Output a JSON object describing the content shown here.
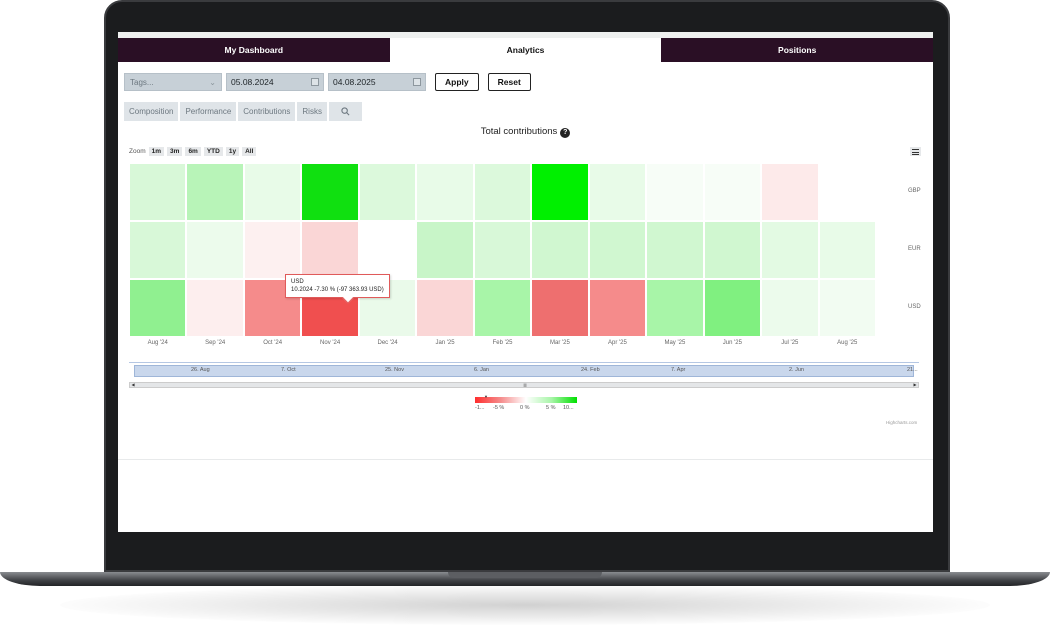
{
  "tabs": [
    {
      "label": "My Dashboard",
      "active": false
    },
    {
      "label": "Analytics",
      "active": true
    },
    {
      "label": "Positions",
      "active": false
    }
  ],
  "filters": {
    "tags_placeholder": "Tags...",
    "date_from": "05.08.2024",
    "date_to": "04.08.2025",
    "apply_label": "Apply",
    "reset_label": "Reset"
  },
  "subtabs": [
    "Composition",
    "Performance",
    "Contributions",
    "Risks"
  ],
  "chart": {
    "title": "Total contributions",
    "zoom_label": "Zoom",
    "zoom_buttons": [
      "1m",
      "3m",
      "6m",
      "YTD",
      "1y",
      "All"
    ],
    "credits": "Highcharts.com"
  },
  "chart_data": {
    "type": "heatmap",
    "title": "Total contributions",
    "x_categories": [
      "Aug '24",
      "Sep '24",
      "Oct '24",
      "Nov '24",
      "Dec '24",
      "Jan '25",
      "Feb '25",
      "Mar '25",
      "Apr '25",
      "May '25",
      "Jun '25",
      "Jul '25",
      "Aug '25"
    ],
    "y_categories": [
      "GBP",
      "EUR",
      "USD"
    ],
    "color_axis": {
      "min_color": "#ff2e2e",
      "mid_color": "#ffffff",
      "max_color": "#00e000",
      "labels": [
        "-1...",
        "-5 %",
        "0 %",
        "5 %",
        "10..."
      ]
    },
    "colors": {
      "GBP": [
        "#d8f8d8",
        "#b8f4b8",
        "#e8fbe8",
        "#10e010",
        "#dcf9dc",
        "#e8fbe8",
        "#dcf9dc",
        "#00f000",
        "#e8fbe8",
        "#f7fdf7",
        "#f7fdf7",
        "#fdeaea",
        "#ffffff"
      ],
      "EUR": [
        "#d8f8d8",
        "#ecfbec",
        "#fdf0f0",
        "#fad6d6",
        "#ffffff",
        "#c8f5c8",
        "#d8f8d8",
        "#d0f7d0",
        "#d0f7d0",
        "#d0f7d0",
        "#d0f7d0",
        "#e3fae3",
        "#e8fbe8"
      ],
      "USD": [
        "#90f090",
        "#fdeeee",
        "#f58b8b",
        "#f04f4f",
        "#eafaea",
        "#fad6d6",
        "#a8f5a8",
        "#ee6f6f",
        "#f58b8b",
        "#a8f5a8",
        "#80f080",
        "#ecfbec",
        "#f2fcf2"
      ]
    },
    "tooltip": {
      "series": "USD",
      "period": "10.2024",
      "value_pct": -7.3,
      "value_text": "-7.30 % (-97 363.93 USD)"
    }
  },
  "navigator": {
    "labels": [
      "26. Aug",
      "7. Oct",
      "25. Nov",
      "6. Jan",
      "24. Feb",
      "7. Apr",
      "2. Jun",
      "21..."
    ]
  }
}
